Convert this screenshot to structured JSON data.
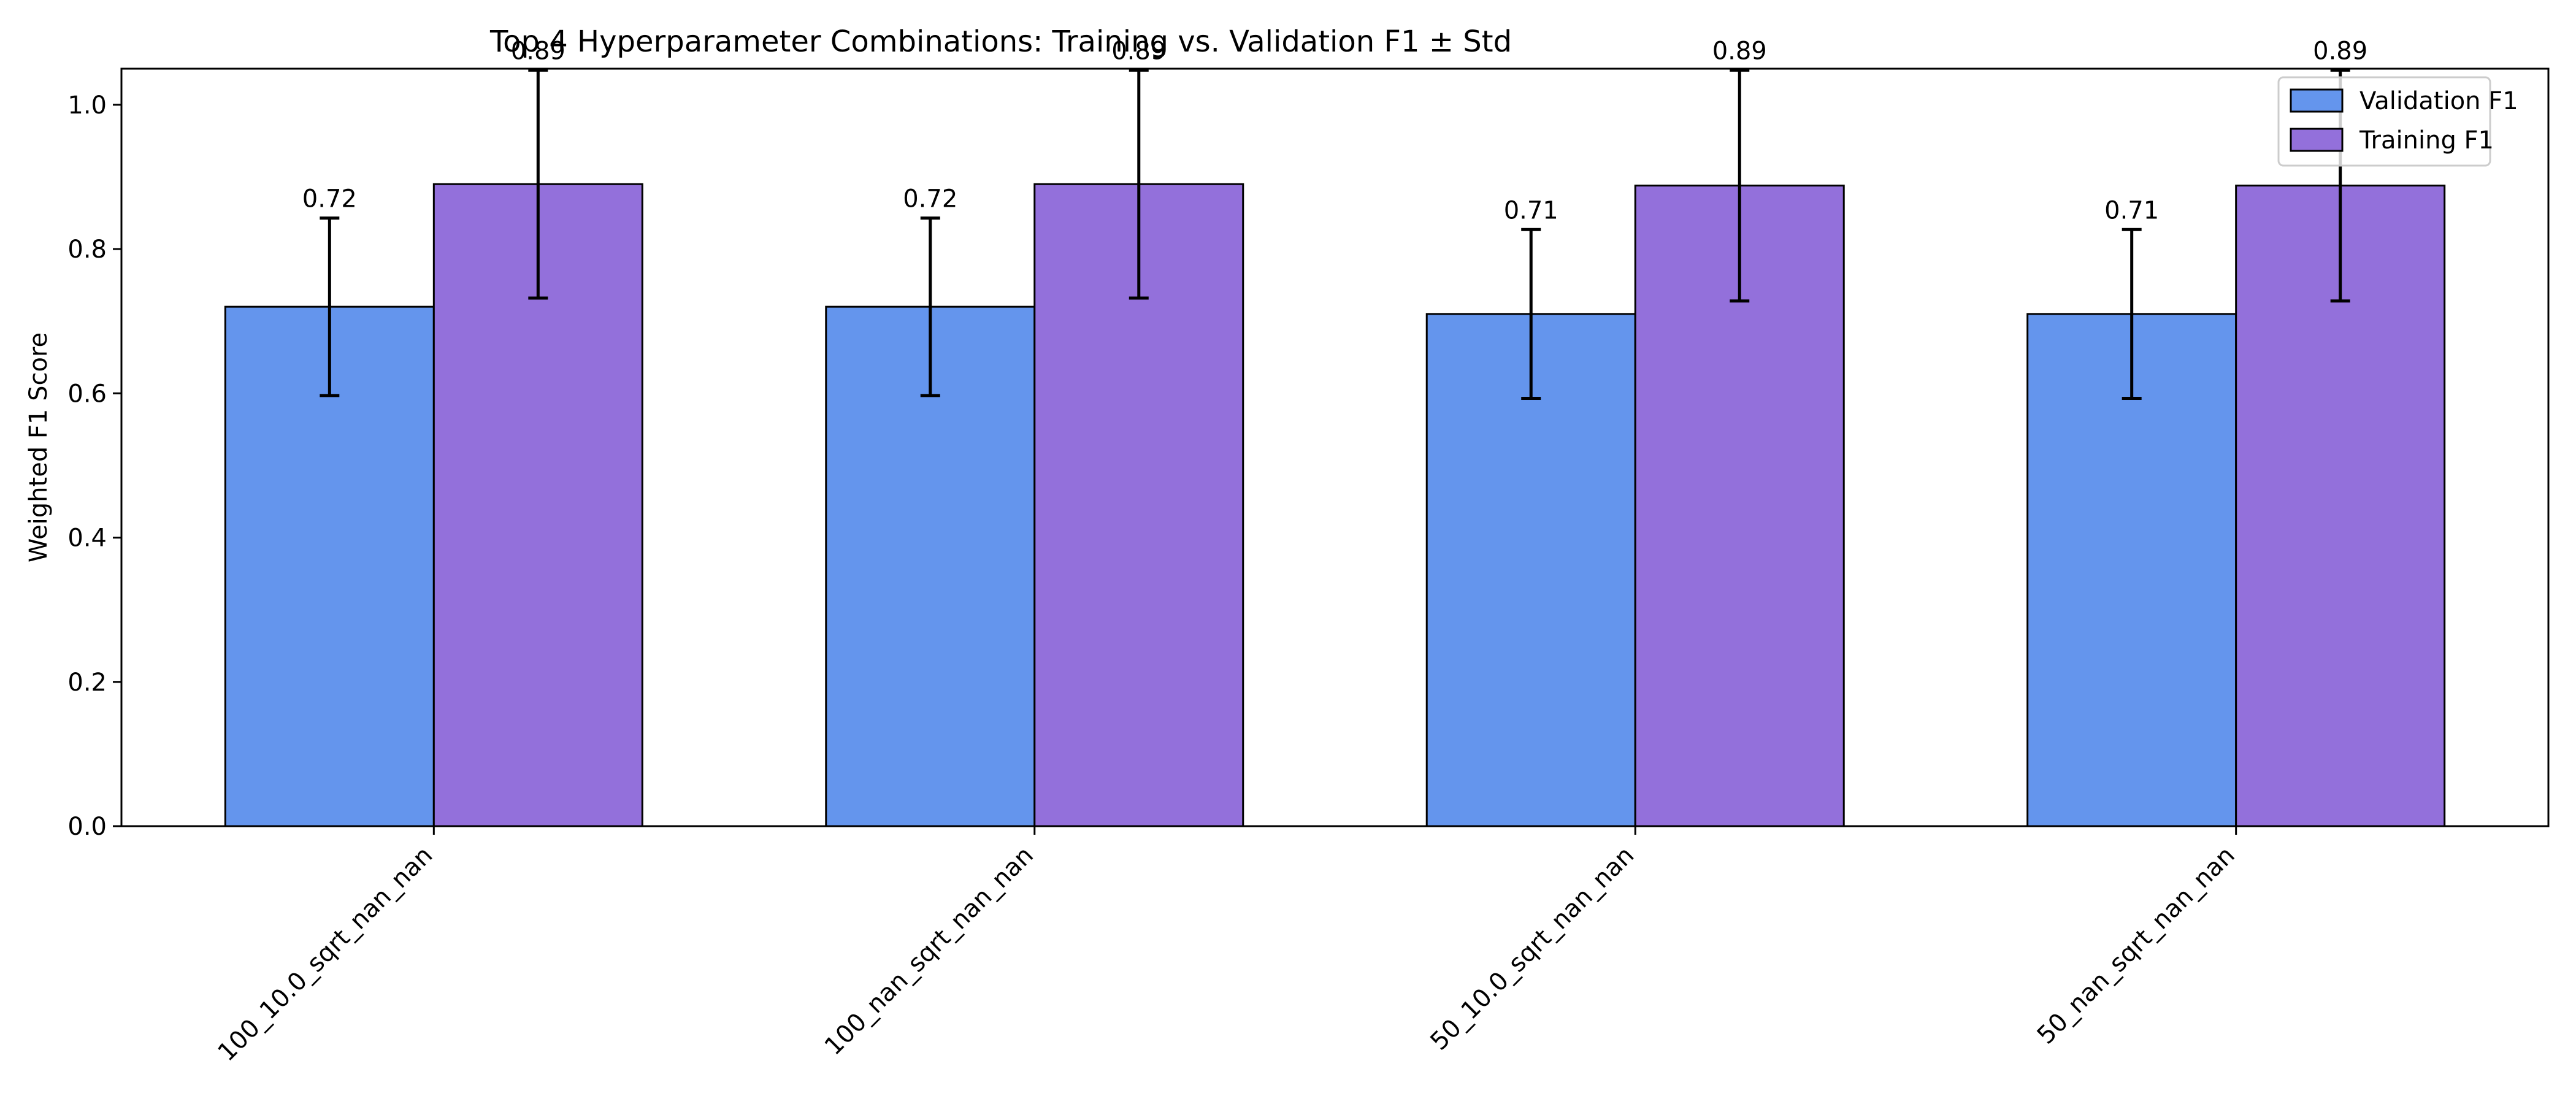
{
  "chart_data": {
    "type": "bar",
    "title": "Top 4 Hyperparameter Combinations: Training vs. Validation F1 ± Std",
    "xlabel": "",
    "ylabel": "Weighted F1 Score",
    "categories": [
      "100_10.0_sqrt_nan_nan",
      "100_nan_sqrt_nan_nan",
      "50_10.0_sqrt_nan_nan",
      "50_nan_sqrt_nan_nan"
    ],
    "ylim": [
      0,
      1.05
    ],
    "yticks": [
      0.0,
      0.2,
      0.4,
      0.6,
      0.8,
      1.0
    ],
    "ytick_labels": [
      "0.0",
      "0.2",
      "0.4",
      "0.6",
      "0.8",
      "1.0"
    ],
    "grid": false,
    "legend_position": "top-right",
    "series": [
      {
        "name": "Validation F1",
        "values": [
          0.72,
          0.72,
          0.71,
          0.71
        ],
        "errors": [
          0.123,
          0.123,
          0.117,
          0.117
        ],
        "labels": [
          "0.72",
          "0.72",
          "0.71",
          "0.71"
        ],
        "color": "#6495ED"
      },
      {
        "name": "Training F1",
        "values": [
          0.89,
          0.89,
          0.888,
          0.888
        ],
        "errors": [
          0.158,
          0.158,
          0.16,
          0.16
        ],
        "labels": [
          "0.89",
          "0.89",
          "0.89",
          "0.89"
        ],
        "color": "#9370DB"
      }
    ]
  }
}
